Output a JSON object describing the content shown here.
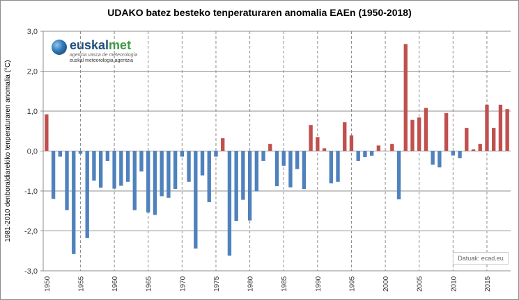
{
  "chart_data": {
    "type": "bar",
    "title": "UDAKO batez besteko tenperaturaren anomalia EAEn (1950-2018)",
    "xlabel": "",
    "ylabel": "1981-2010 denboraldiarekiko tenperaturaren anomalia (°C)",
    "ylim": [
      -3.0,
      3.0
    ],
    "yticks": [
      "3,0",
      "2,0",
      "1,0",
      "0,0",
      "-1,0",
      "-2,0",
      "-3,0"
    ],
    "ytick_values": [
      3,
      2,
      1,
      0,
      -1,
      -2,
      -3
    ],
    "xtick_labels": [
      "1950",
      "1955",
      "1960",
      "1965",
      "1970",
      "1975",
      "1980",
      "1985",
      "1990",
      "1995",
      "2000",
      "2005",
      "2010",
      "2015"
    ],
    "grid": "horizontal solid at major y ticks, vertical dashed every 5 years",
    "positive_color": "#c0504d",
    "negative_color": "#4f81bd",
    "categories": [
      1950,
      1951,
      1952,
      1953,
      1954,
      1955,
      1956,
      1957,
      1958,
      1959,
      1960,
      1961,
      1962,
      1963,
      1964,
      1965,
      1966,
      1967,
      1968,
      1969,
      1970,
      1971,
      1972,
      1973,
      1974,
      1975,
      1976,
      1977,
      1978,
      1979,
      1980,
      1981,
      1982,
      1983,
      1984,
      1985,
      1986,
      1987,
      1988,
      1989,
      1990,
      1991,
      1992,
      1993,
      1994,
      1995,
      1996,
      1997,
      1998,
      1999,
      2000,
      2001,
      2002,
      2003,
      2004,
      2005,
      2006,
      2007,
      2008,
      2009,
      2010,
      2011,
      2012,
      2013,
      2014,
      2015,
      2016,
      2017,
      2018
    ],
    "values": [
      0.92,
      -1.2,
      -0.14,
      -1.48,
      -2.58,
      -0.07,
      -2.18,
      -0.74,
      -0.92,
      -0.25,
      -0.94,
      -0.87,
      -0.77,
      -1.48,
      -0.51,
      -1.54,
      -1.6,
      -1.13,
      -1.17,
      -0.95,
      -0.14,
      -0.77,
      -2.44,
      -0.61,
      -1.28,
      -0.14,
      0.32,
      -2.62,
      -1.75,
      -1.22,
      -1.74,
      -1.01,
      -0.25,
      0.18,
      -0.88,
      -0.37,
      -0.91,
      -0.45,
      -0.95,
      0.65,
      0.35,
      0.07,
      -0.81,
      -0.77,
      0.72,
      0.39,
      -0.25,
      -0.15,
      -0.12,
      0.14,
      0.01,
      0.18,
      -1.21,
      2.68,
      0.78,
      0.84,
      1.08,
      -0.34,
      -0.41,
      0.95,
      -0.11,
      -0.18,
      0.58,
      0.04,
      0.18,
      1.16,
      0.58,
      1.16,
      1.05
    ]
  },
  "logo": {
    "name_part1": "euskal",
    "name_part2": "met",
    "subtitle_es": "agencia vasca de meteorología",
    "subtitle_eu": "euskal meteorologia agentzia"
  },
  "source_label": "Datuak: ecad.eu"
}
